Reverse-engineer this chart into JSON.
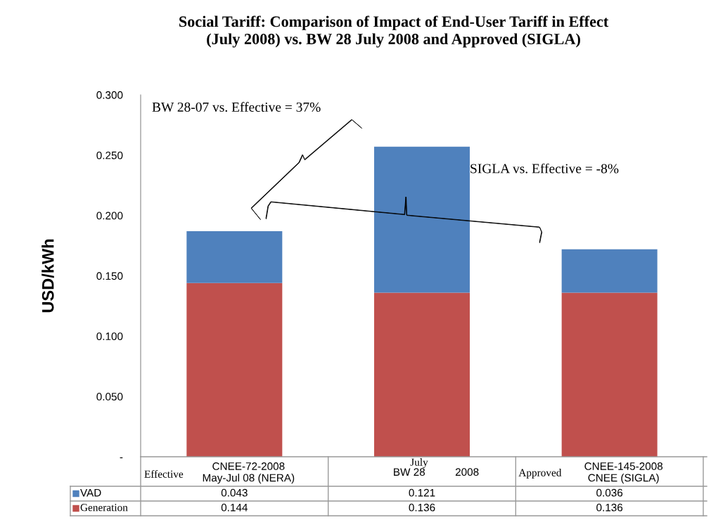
{
  "chart_data": {
    "type": "bar",
    "stacked": true,
    "title": "Social Tariff: Comparison of Impact of End-User Tariff in Effect\n(July 2008) vs. BW 28 July 2008 and Approved (SIGLA)",
    "ylabel": "USD/kWh",
    "categories": [
      "CNEE-72-2008\nMay-Jul 08 (NERA)",
      "BW 28          2008",
      "CNEE-145-2008\nCNEE (SIGLA)"
    ],
    "series": [
      {
        "name": "Generation",
        "color": "#c0504d",
        "values": [
          0.144,
          0.136,
          0.136
        ]
      },
      {
        "name": "VAD",
        "color": "#4f81bd",
        "values": [
          0.043,
          0.121,
          0.036
        ]
      }
    ],
    "ylim": [
      0,
      0.3
    ],
    "yticks": [
      {
        "value": 0,
        "label": "-"
      },
      {
        "value": 0.05,
        "label": "0.050"
      },
      {
        "value": 0.1,
        "label": "0.100"
      },
      {
        "value": 0.15,
        "label": "0.150"
      },
      {
        "value": 0.2,
        "label": "0.200"
      },
      {
        "value": 0.25,
        "label": "0.250"
      },
      {
        "value": 0.3,
        "label": "0.300"
      }
    ],
    "data_labels": true,
    "grid": false,
    "legend": "bottom",
    "annotations": [
      "BW 28-07 vs. Effective = 37%",
      "SIGLA vs. Effective = -8%",
      "Effective",
      "July",
      "Approved"
    ]
  }
}
